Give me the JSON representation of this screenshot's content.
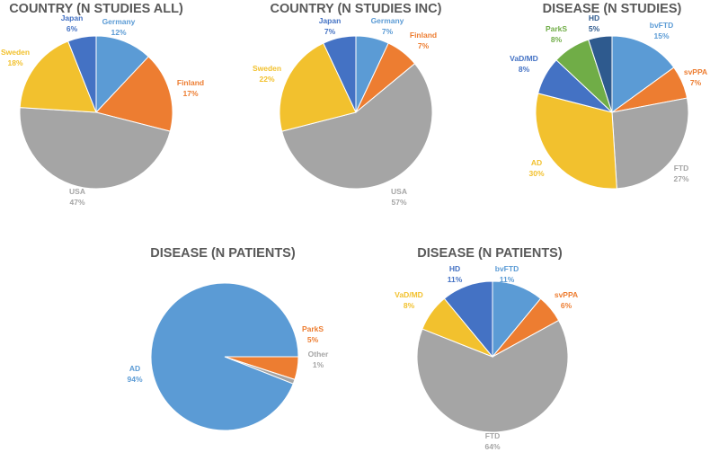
{
  "colors": {
    "blue_light": "#5B9BD5",
    "orange": "#ED7D31",
    "gray": "#A5A5A5",
    "gold": "#F2C12E",
    "blue_dark": "#4472C4",
    "green": "#70AD47",
    "navy": "#2E5A8E",
    "title": "#595959"
  },
  "chart_data": [
    {
      "type": "pie",
      "title": "COUNTRY (N STUDIES ALL)",
      "slices": [
        {
          "name": "Germany",
          "value": 12,
          "pct": "12%",
          "color": "#5B9BD5"
        },
        {
          "name": "Finland",
          "value": 17,
          "pct": "17%",
          "color": "#ED7D31"
        },
        {
          "name": "USA",
          "value": 47,
          "pct": "47%",
          "color": "#A5A5A5"
        },
        {
          "name": "Sweden",
          "value": 18,
          "pct": "18%",
          "color": "#F2C12E"
        },
        {
          "name": "Japan",
          "value": 6,
          "pct": "6%",
          "color": "#4472C4"
        }
      ]
    },
    {
      "type": "pie",
      "title": "COUNTRY (N STUDIES INC)",
      "slices": [
        {
          "name": "Germany",
          "value": 7,
          "pct": "7%",
          "color": "#5B9BD5"
        },
        {
          "name": "Finland",
          "value": 7,
          "pct": "7%",
          "color": "#ED7D31"
        },
        {
          "name": "USA",
          "value": 57,
          "pct": "57%",
          "color": "#A5A5A5"
        },
        {
          "name": "Sweden",
          "value": 22,
          "pct": "22%",
          "color": "#F2C12E"
        },
        {
          "name": "Japan",
          "value": 7,
          "pct": "7%",
          "color": "#4472C4"
        }
      ]
    },
    {
      "type": "pie",
      "title": "DISEASE (N STUDIES)",
      "slices": [
        {
          "name": "bvFTD",
          "value": 15,
          "pct": "15%",
          "color": "#5B9BD5"
        },
        {
          "name": "svPPA",
          "value": 7,
          "pct": "7%",
          "color": "#ED7D31"
        },
        {
          "name": "FTD",
          "value": 27,
          "pct": "27%",
          "color": "#A5A5A5"
        },
        {
          "name": "AD",
          "value": 30,
          "pct": "30%",
          "color": "#F2C12E"
        },
        {
          "name": "VaD/MD",
          "value": 8,
          "pct": "8%",
          "color": "#4472C4"
        },
        {
          "name": "ParkS",
          "value": 8,
          "pct": "8%",
          "color": "#70AD47"
        },
        {
          "name": "HD",
          "value": 5,
          "pct": "5%",
          "color": "#2E5A8E"
        }
      ]
    },
    {
      "type": "pie",
      "title": "DISEASE (N PATIENTS)",
      "start_angle": 90,
      "slices": [
        {
          "name": "ParkS",
          "value": 5,
          "pct": "5%",
          "color": "#ED7D31"
        },
        {
          "name": "Other",
          "value": 1,
          "pct": "1%",
          "color": "#A5A5A5"
        },
        {
          "name": "AD",
          "value": 94,
          "pct": "94%",
          "color": "#5B9BD5"
        }
      ]
    },
    {
      "type": "pie",
      "title": "DISEASE (N PATIENTS)",
      "slices": [
        {
          "name": "bvFTD",
          "value": 11,
          "pct": "11%",
          "color": "#5B9BD5"
        },
        {
          "name": "svPPA",
          "value": 6,
          "pct": "6%",
          "color": "#ED7D31"
        },
        {
          "name": "FTD",
          "value": 64,
          "pct": "64%",
          "color": "#A5A5A5"
        },
        {
          "name": "VaD/MD",
          "value": 8,
          "pct": "8%",
          "color": "#F2C12E"
        },
        {
          "name": "HD",
          "value": 11,
          "pct": "11%",
          "color": "#4472C4"
        }
      ]
    }
  ]
}
